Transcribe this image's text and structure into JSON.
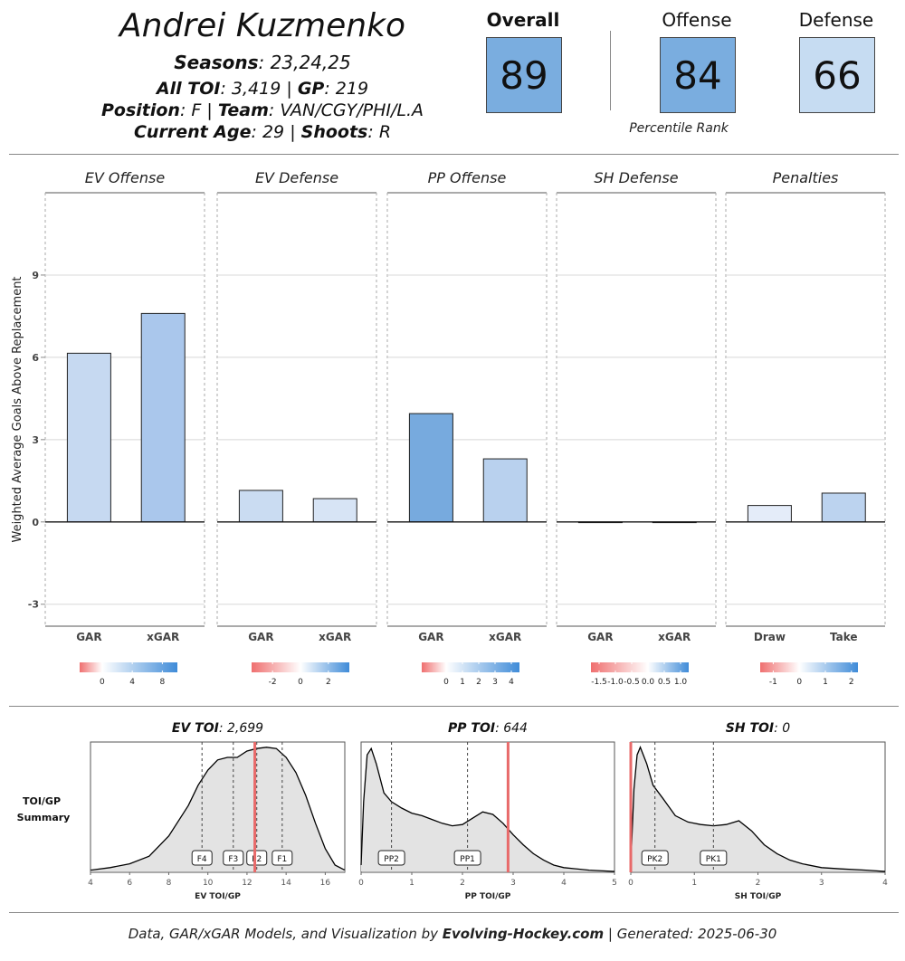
{
  "player": {
    "name": "Andrei Kuzmenko",
    "seasons_label": "Seasons",
    "seasons_value": "23,24,25",
    "toi_label": "All TOI",
    "toi_value": "3,419",
    "gp_label": "GP",
    "gp_value": "219",
    "position_label": "Position",
    "position_value": "F",
    "team_label": "Team",
    "team_value": "VAN/CGY/PHI/L.A",
    "age_label": "Current Age",
    "age_value": "29",
    "shoots_label": "Shoots",
    "shoots_value": "R",
    "separator": "|"
  },
  "scores": {
    "overall": {
      "label": "Overall",
      "value": "89",
      "color": "#7aaddf"
    },
    "offense": {
      "label": "Offense",
      "value": "84",
      "color": "#7aaddf"
    },
    "defense": {
      "label": "Defense",
      "value": "66",
      "color": "#c6dcf2"
    },
    "footnote": "Percentile Rank"
  },
  "footer": {
    "prefix": "Data, GAR/xGAR Models, and Visualization by",
    "brand": "Evolving-Hockey.com",
    "suffix": "| Generated: 2025-06-30"
  },
  "chart_data": [
    {
      "type": "bar",
      "ylabel": "Weighted Average Goals Above Replacement",
      "ylim": [
        -3.8,
        12
      ],
      "yticks": [
        -3,
        0,
        3,
        6,
        9
      ],
      "grid": true,
      "panels": [
        {
          "title": "EV Offense",
          "categories": [
            "GAR",
            "xGAR"
          ],
          "values": [
            6.15,
            7.6
          ],
          "colors": [
            "#c6d9f1",
            "#aac7ec"
          ],
          "legend": {
            "ticks": [
              "0",
              "4",
              "8"
            ],
            "tick_values": [
              0,
              4,
              8
            ],
            "range": [
              -3,
              10
            ]
          }
        },
        {
          "title": "EV Defense",
          "categories": [
            "GAR",
            "xGAR"
          ],
          "values": [
            1.15,
            0.85
          ],
          "colors": [
            "#cadcf2",
            "#d7e4f5"
          ],
          "legend": {
            "ticks": [
              "-2",
              "0",
              "2"
            ],
            "tick_values": [
              -2,
              0,
              2
            ],
            "range": [
              -3.5,
              3.5
            ]
          }
        },
        {
          "title": "PP Offense",
          "categories": [
            "GAR",
            "xGAR"
          ],
          "values": [
            3.95,
            2.3
          ],
          "colors": [
            "#77aade",
            "#b9d1ee"
          ],
          "legend": {
            "ticks": [
              "0",
              "1",
              "2",
              "3",
              "4"
            ],
            "tick_values": [
              0,
              1,
              2,
              3,
              4
            ],
            "range": [
              -1.5,
              4.5
            ]
          }
        },
        {
          "title": "SH Defense",
          "categories": [
            "GAR",
            "xGAR"
          ],
          "values": [
            0.0,
            0.0
          ],
          "colors": [
            "#f4f4f4",
            "#f4f4f4"
          ],
          "legend": {
            "ticks": [
              "-1.5",
              "-1.0",
              "-0.5",
              "0.0",
              "0.5",
              "1.0"
            ],
            "tick_values": [
              -1.5,
              -1.0,
              -0.5,
              0.0,
              0.5,
              1.0
            ],
            "range": [
              -1.75,
              1.25
            ]
          }
        },
        {
          "title": "Penalties",
          "categories": [
            "Draw",
            "Take"
          ],
          "values": [
            0.6,
            1.05
          ],
          "colors": [
            "#e4ecf9",
            "#bcd3ef"
          ],
          "legend": {
            "ticks": [
              "-1",
              "0",
              "1",
              "2"
            ],
            "tick_values": [
              -1,
              0,
              1,
              2
            ],
            "range": [
              -1.5,
              2.25
            ]
          }
        }
      ]
    },
    {
      "type": "area",
      "title": "TOI/GP Summary",
      "panels": [
        {
          "title_label": "EV TOI",
          "title_value": "2,699",
          "xlabel": "EV TOI/GP",
          "xlim": [
            4,
            17
          ],
          "xticks": [
            4,
            6,
            8,
            10,
            12,
            14,
            16
          ],
          "player_value": 12.4,
          "markers": [
            {
              "label": "F4",
              "x": 9.7
            },
            {
              "label": "F3",
              "x": 11.3
            },
            {
              "label": "F2",
              "x": 12.5
            },
            {
              "label": "F1",
              "x": 13.8
            }
          ],
          "density": [
            [
              4,
              0.01
            ],
            [
              5,
              0.03
            ],
            [
              6,
              0.06
            ],
            [
              7,
              0.12
            ],
            [
              8,
              0.28
            ],
            [
              9,
              0.52
            ],
            [
              9.5,
              0.68
            ],
            [
              10,
              0.8
            ],
            [
              10.5,
              0.88
            ],
            [
              11,
              0.9
            ],
            [
              11.5,
              0.9
            ],
            [
              12,
              0.95
            ],
            [
              12.5,
              0.97
            ],
            [
              13,
              0.98
            ],
            [
              13.5,
              0.97
            ],
            [
              14,
              0.9
            ],
            [
              14.5,
              0.78
            ],
            [
              15,
              0.6
            ],
            [
              15.5,
              0.38
            ],
            [
              16,
              0.18
            ],
            [
              16.5,
              0.05
            ],
            [
              17,
              0.01
            ]
          ]
        },
        {
          "title_label": "PP TOI",
          "title_value": "644",
          "xlabel": "PP TOI/GP",
          "xlim": [
            0,
            5
          ],
          "xticks": [
            0,
            1,
            2,
            3,
            4,
            5
          ],
          "player_value": 2.9,
          "markers": [
            {
              "label": "PP2",
              "x": 0.6
            },
            {
              "label": "PP1",
              "x": 2.1
            }
          ],
          "density": [
            [
              0,
              0.05
            ],
            [
              0.05,
              0.55
            ],
            [
              0.12,
              0.92
            ],
            [
              0.2,
              0.97
            ],
            [
              0.3,
              0.85
            ],
            [
              0.45,
              0.62
            ],
            [
              0.6,
              0.55
            ],
            [
              0.8,
              0.5
            ],
            [
              1.0,
              0.46
            ],
            [
              1.2,
              0.44
            ],
            [
              1.4,
              0.41
            ],
            [
              1.6,
              0.38
            ],
            [
              1.8,
              0.36
            ],
            [
              2.0,
              0.37
            ],
            [
              2.2,
              0.42
            ],
            [
              2.4,
              0.47
            ],
            [
              2.6,
              0.45
            ],
            [
              2.8,
              0.38
            ],
            [
              3.0,
              0.29
            ],
            [
              3.2,
              0.21
            ],
            [
              3.4,
              0.14
            ],
            [
              3.6,
              0.09
            ],
            [
              3.8,
              0.05
            ],
            [
              4.0,
              0.03
            ],
            [
              4.5,
              0.01
            ],
            [
              5,
              0.0
            ]
          ]
        },
        {
          "title_label": "SH TOI",
          "title_value": "0",
          "xlabel": "SH TOI/GP",
          "xlim": [
            0,
            4
          ],
          "xticks": [
            0,
            1,
            2,
            3,
            4
          ],
          "player_value": 0.0,
          "markers": [
            {
              "label": "PK2",
              "x": 0.38
            },
            {
              "label": "PK1",
              "x": 1.3
            }
          ],
          "density": [
            [
              0,
              0.05
            ],
            [
              0.05,
              0.65
            ],
            [
              0.1,
              0.92
            ],
            [
              0.15,
              0.98
            ],
            [
              0.25,
              0.85
            ],
            [
              0.35,
              0.68
            ],
            [
              0.5,
              0.58
            ],
            [
              0.7,
              0.44
            ],
            [
              0.9,
              0.39
            ],
            [
              1.1,
              0.37
            ],
            [
              1.3,
              0.36
            ],
            [
              1.5,
              0.37
            ],
            [
              1.7,
              0.4
            ],
            [
              1.9,
              0.32
            ],
            [
              2.1,
              0.21
            ],
            [
              2.3,
              0.14
            ],
            [
              2.5,
              0.09
            ],
            [
              2.7,
              0.06
            ],
            [
              3.0,
              0.03
            ],
            [
              3.3,
              0.02
            ],
            [
              3.7,
              0.01
            ],
            [
              4,
              0.0
            ]
          ]
        }
      ]
    }
  ]
}
